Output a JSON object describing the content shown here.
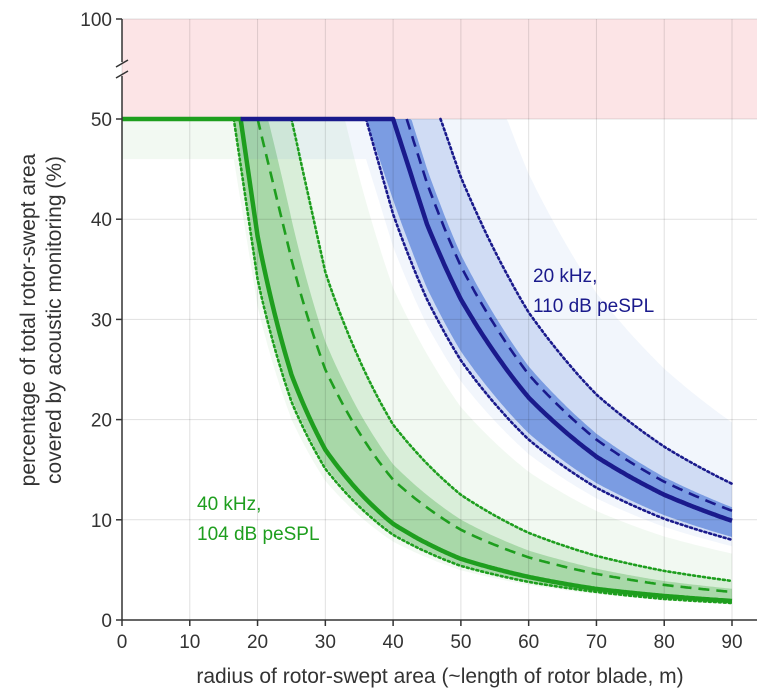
{
  "chart_data": {
    "type": "line",
    "xlabel": "radius of rotor-swept area (~length of rotor blade, m)",
    "ylabel_line1": "percentage of total rotor-swept area",
    "ylabel_line2": "covered by acoustic monitoring (%)",
    "xlim": [
      0,
      90
    ],
    "ylim": [
      0,
      100
    ],
    "y_axis_break": [
      50,
      100
    ],
    "grid": true,
    "x_ticks": [
      "0",
      "10",
      "20",
      "30",
      "40",
      "50",
      "60",
      "70",
      "80",
      "90"
    ],
    "y_ticks": [
      "0",
      "10",
      "20",
      "30",
      "40",
      "50",
      "100"
    ],
    "shaded_region": {
      "y_from": 50,
      "y_to": 100,
      "color": "#fce4e6"
    },
    "series": [
      {
        "annotation_line1": "40 kHz,",
        "annotation_line2": "104 dB peSPL",
        "color": "#1e9e1e",
        "light_color": "#7fc77f",
        "median": {
          "x": [
            0,
            17.5,
            20,
            25,
            30,
            40,
            50,
            60,
            70,
            80,
            90
          ],
          "y": [
            50,
            50,
            38.3,
            24.5,
            17.0,
            9.6,
            6.1,
            4.3,
            3.1,
            2.4,
            1.9
          ]
        },
        "dashed_upper": {
          "x": [
            0,
            20,
            25,
            30,
            40,
            50,
            60,
            70,
            80,
            90
          ],
          "y": [
            50,
            50,
            36,
            25,
            14,
            9.0,
            6.25,
            4.6,
            3.5,
            2.8
          ]
        },
        "dotted_upper": {
          "x": [
            0,
            25,
            30,
            40,
            50,
            60,
            70,
            80,
            90
          ],
          "y": [
            50,
            50,
            34.7,
            19.5,
            12.5,
            8.7,
            6.4,
            4.9,
            3.9
          ]
        },
        "dotted_lower": {
          "x": [
            0,
            16.5,
            20,
            25,
            30,
            40,
            50,
            60,
            70,
            80,
            90
          ],
          "y": [
            50,
            50,
            34,
            21.8,
            15.1,
            8.5,
            5.4,
            3.8,
            2.8,
            2.1,
            1.7
          ]
        }
      },
      {
        "annotation_line1": "20 kHz,",
        "annotation_line2": "110 dB peSPL",
        "color": "#1a1a8c",
        "light_color": "#4d79d9",
        "median": {
          "x": [
            17.5,
            40,
            45,
            50,
            60,
            70,
            80,
            90
          ],
          "y": [
            50,
            50,
            39.5,
            32.0,
            22.2,
            16.3,
            12.5,
            9.9
          ]
        },
        "dashed_upper": {
          "x": [
            17.5,
            42,
            45,
            50,
            60,
            70,
            80,
            90
          ],
          "y": [
            50,
            50,
            43.6,
            35.3,
            24.5,
            18.0,
            13.8,
            10.9
          ]
        },
        "dotted_upper": {
          "x": [
            17.5,
            47,
            50,
            60,
            70,
            80,
            90
          ],
          "y": [
            50,
            50,
            44.2,
            30.7,
            22.5,
            17.3,
            13.6
          ]
        },
        "dotted_lower": {
          "x": [
            17.5,
            36,
            40,
            45,
            50,
            60,
            70,
            80,
            90
          ],
          "y": [
            50,
            50,
            40.5,
            32.0,
            25.9,
            18.0,
            13.2,
            10.1,
            8.0
          ]
        }
      }
    ]
  }
}
